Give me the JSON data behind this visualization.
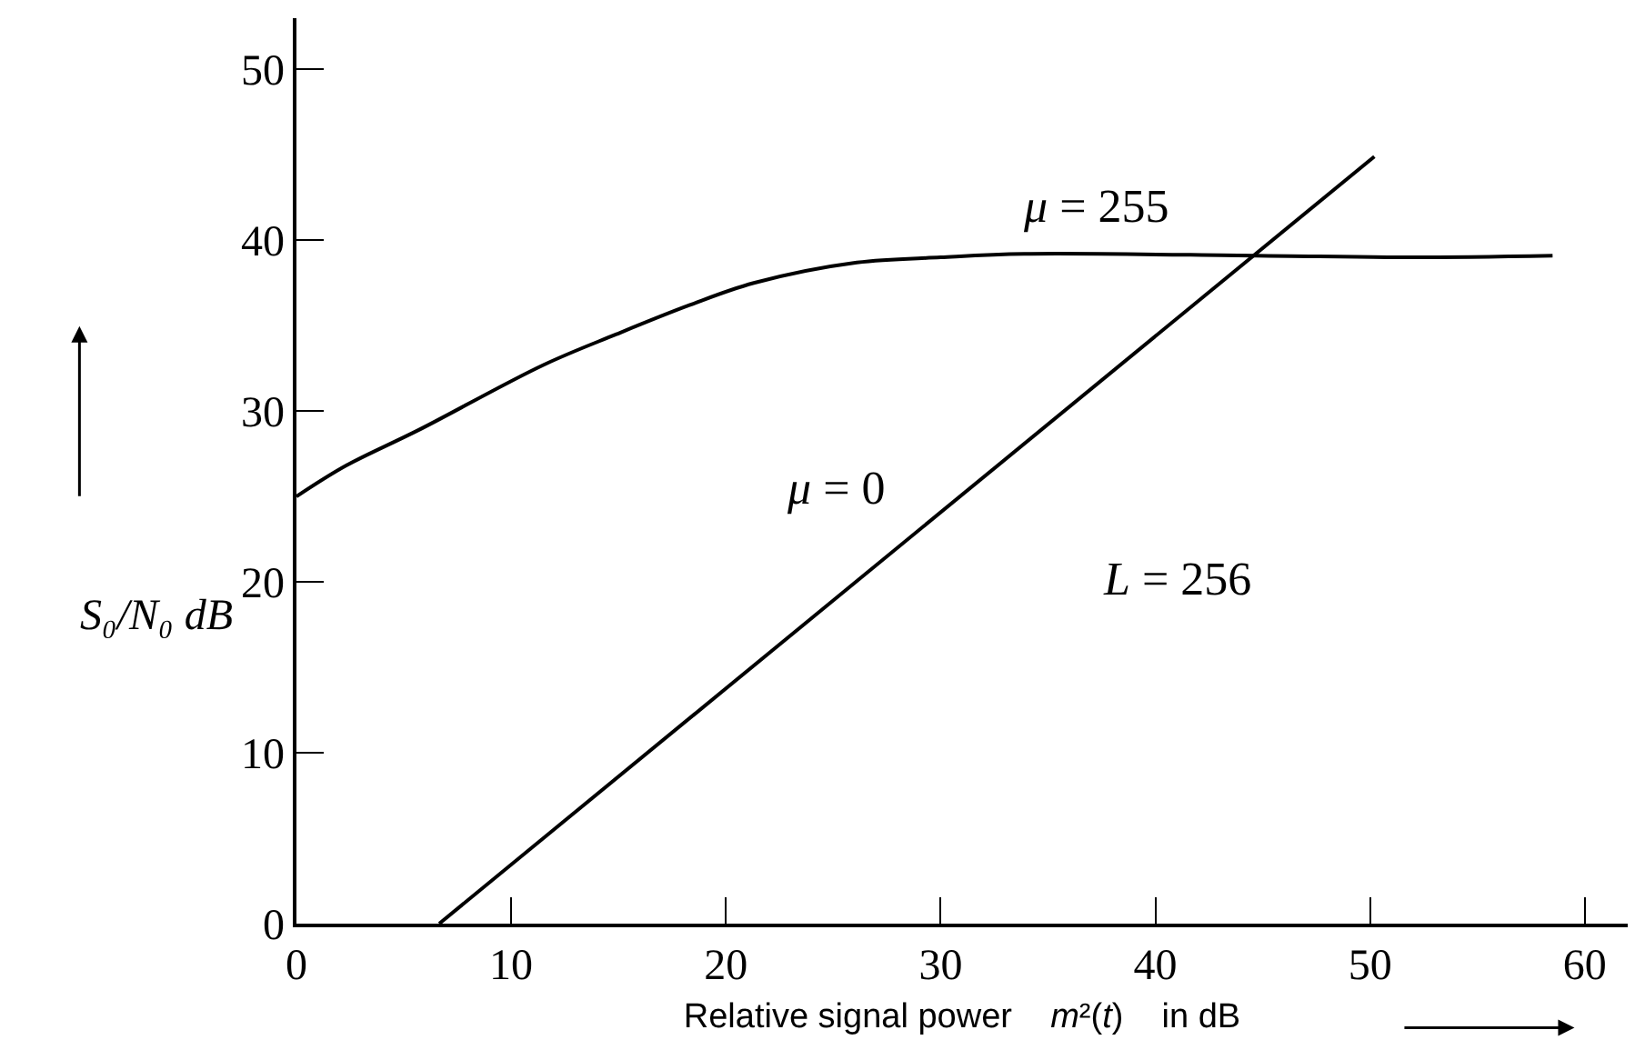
{
  "chart_data": {
    "type": "line",
    "xlabel": "Relative signal power m²(t) in dB",
    "ylabel": "S₀/N₀ dB",
    "xlim": [
      0,
      62
    ],
    "ylim": [
      0,
      53
    ],
    "xticks": [
      0,
      10,
      20,
      30,
      40,
      50,
      60
    ],
    "yticks": [
      0,
      10,
      20,
      30,
      40,
      50
    ],
    "legend": false,
    "marker": "none",
    "line_style": "solid",
    "series": [
      {
        "name": "μ = 255",
        "color": "#000000",
        "x": [
          0,
          2.3,
          5.7,
          11.5,
          14.9,
          18.3,
          21.3,
          26.1,
          30.0,
          33.9,
          44.7,
          51.9,
          58.5
        ],
        "values": [
          25.0,
          26.8,
          28.9,
          32.7,
          34.5,
          36.2,
          37.5,
          38.7,
          39.0,
          39.2,
          39.1,
          39.0,
          39.1
        ]
      },
      {
        "name": "μ = 0",
        "color": "#000000",
        "x": [
          6.65,
          50.2
        ],
        "values": [
          0,
          44.9
        ]
      }
    ],
    "annotations": [
      "L = 256"
    ]
  }
}
